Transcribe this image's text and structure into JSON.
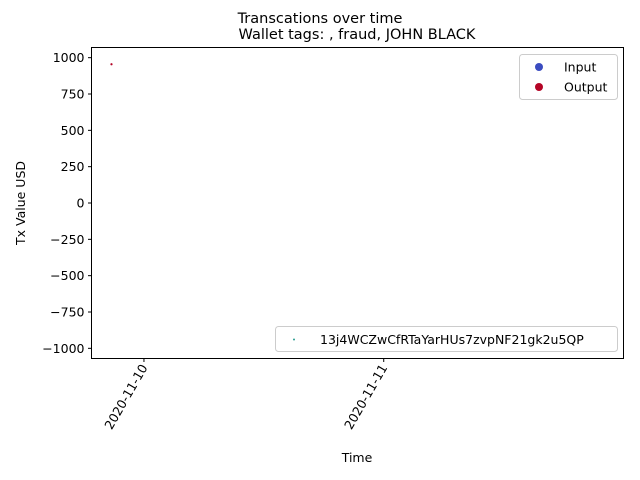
{
  "chart_data": {
    "type": "scatter",
    "suptitle": "Transcations over time",
    "title": "Wallet tags: , fraud, JOHN BLACK",
    "xlabel": "Time",
    "ylabel": "Tx Value USD",
    "ylim": [
      -1070,
      1070
    ],
    "xlim": [
      "2020-11-09T18:45",
      "2020-11-12T00:00"
    ],
    "y_ticks": [
      1000,
      750,
      500,
      250,
      0,
      -250,
      -500,
      -750,
      -1000
    ],
    "y_tick_labels": [
      "1000",
      "750",
      "500",
      "250",
      "0",
      "−250",
      "−500",
      "−750",
      "−1000"
    ],
    "x_ticks": [
      "2020-11-10",
      "2020-11-11"
    ],
    "x_tick_labels": [
      "2020-11-10",
      "2020-11-11"
    ],
    "grid": false,
    "legends": [
      {
        "placement": "upper-right",
        "entries": [
          {
            "label": "Input",
            "color": "#3b4cc0",
            "marker": "circle"
          },
          {
            "label": "Output",
            "color": "#b40426",
            "marker": "circle"
          }
        ]
      },
      {
        "placement": "lower-right",
        "entries": [
          {
            "label": "13j4WCZwCfRTaYarHUs7zvpNF21gk2u5QP",
            "color": "#2a9d8f",
            "marker": "point"
          }
        ]
      }
    ],
    "series": [
      {
        "name": "Output",
        "color": "#b40426",
        "points": [
          {
            "x": "2020-11-09T20:45",
            "y": 955
          }
        ]
      }
    ]
  }
}
